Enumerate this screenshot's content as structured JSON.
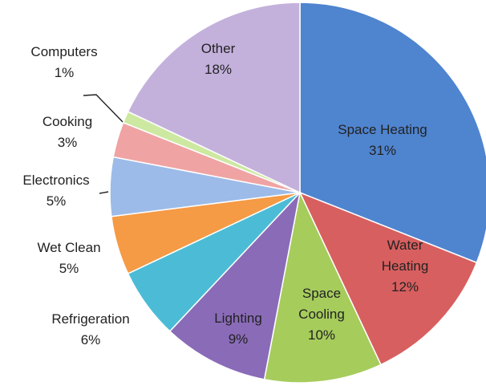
{
  "chart_data": {
    "type": "pie",
    "title": "",
    "slices": [
      {
        "label": "Space Heating",
        "value": 31,
        "pct": "31%",
        "color": "#4f84cf"
      },
      {
        "label": "Water Heating",
        "value": 12,
        "pct": "12%",
        "color": "#d85f5f"
      },
      {
        "label": "Space Cooling",
        "value": 10,
        "pct": "10%",
        "color": "#a6cc5c"
      },
      {
        "label": "Lighting",
        "value": 9,
        "pct": "9%",
        "color": "#8a6bb8"
      },
      {
        "label": "Refrigeration",
        "value": 6,
        "pct": "6%",
        "color": "#4cbcd6"
      },
      {
        "label": "Wet Clean",
        "value": 5,
        "pct": "5%",
        "color": "#f59a45"
      },
      {
        "label": "Electronics",
        "value": 5,
        "pct": "5%",
        "color": "#9dbbe8"
      },
      {
        "label": "Cooking",
        "value": 3,
        "pct": "3%",
        "color": "#f0a3a3"
      },
      {
        "label": "Computers",
        "value": 1,
        "pct": "1%",
        "color": "#cde8a0"
      },
      {
        "label": "Other",
        "value": 18,
        "pct": "18%",
        "color": "#c3b1dc"
      }
    ]
  }
}
